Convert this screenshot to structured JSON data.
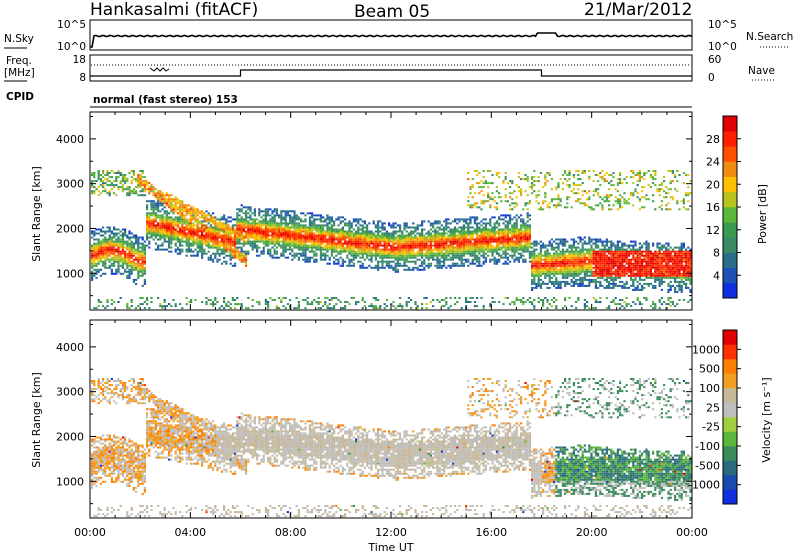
{
  "header": {
    "station": "Hankasalmi (fitACF)",
    "beam": "Beam 05",
    "date": "21/Mar/2012"
  },
  "side_labels": {
    "nsky": "N.Sky",
    "freq": "Freq.",
    "freq_unit": "[MHz]",
    "cpid": "CPID",
    "nsearch": "N.Search",
    "nave": "Nave"
  },
  "mode_label": "normal (fast stereo) 153",
  "noise_panel": {
    "left_ticks": [
      "10^5",
      "10^0"
    ],
    "right_ticks": [
      "10^5",
      "10^0"
    ]
  },
  "freq_panel": {
    "left_ticks": [
      "18",
      "8"
    ],
    "right_ticks": [
      "60",
      "0"
    ]
  },
  "colors": {
    "power_scale": [
      "#1030e0",
      "#1c52b4",
      "#28708a",
      "#3a8c64",
      "#3c9a50",
      "#5cb83c",
      "#b8c41c",
      "#ffc000",
      "#f08c10",
      "#ff5000",
      "#ff2000",
      "#e00000"
    ],
    "velocity_scale": [
      "#1030e0",
      "#1a4ab0",
      "#2a6a80",
      "#3a8a5a",
      "#5cb83c",
      "#a0d040",
      "#bebebe",
      "#c8b89a",
      "#f0a020",
      "#ff8000",
      "#ff3000",
      "#e00000"
    ]
  },
  "chart_data": [
    {
      "type": "heatmap",
      "name": "Power",
      "ylabel": "Slant Range [km]",
      "xlabel": "Time UT",
      "x_ticks": [
        "00:00",
        "04:00",
        "08:00",
        "12:00",
        "16:00",
        "20:00",
        "00:00"
      ],
      "y_ticks": [
        "1000",
        "2000",
        "3000",
        "4000"
      ],
      "y_range_km": [
        180,
        4600
      ],
      "x_range_hours": [
        0,
        24
      ],
      "colorbar_label": "Power [dB]",
      "colorbar_ticks": [
        "4",
        "8",
        "12",
        "16",
        "20",
        "24",
        "28"
      ],
      "colorbar_range": [
        0,
        30
      ]
    },
    {
      "type": "heatmap",
      "name": "Velocity",
      "ylabel": "Slant Range [km]",
      "xlabel": "Time UT",
      "x_ticks": [
        "00:00",
        "04:00",
        "08:00",
        "12:00",
        "16:00",
        "20:00",
        "00:00"
      ],
      "y_ticks": [
        "1000",
        "2000",
        "3000",
        "4000"
      ],
      "y_range_km": [
        180,
        4600
      ],
      "x_range_hours": [
        0,
        24
      ],
      "colorbar_label": "Velocity [m s⁻¹]",
      "colorbar_ticks": [
        "1000",
        "500",
        "100",
        "25",
        "-25",
        "-100",
        "-500",
        "-1000"
      ]
    }
  ],
  "x_axis_title": "Time UT"
}
